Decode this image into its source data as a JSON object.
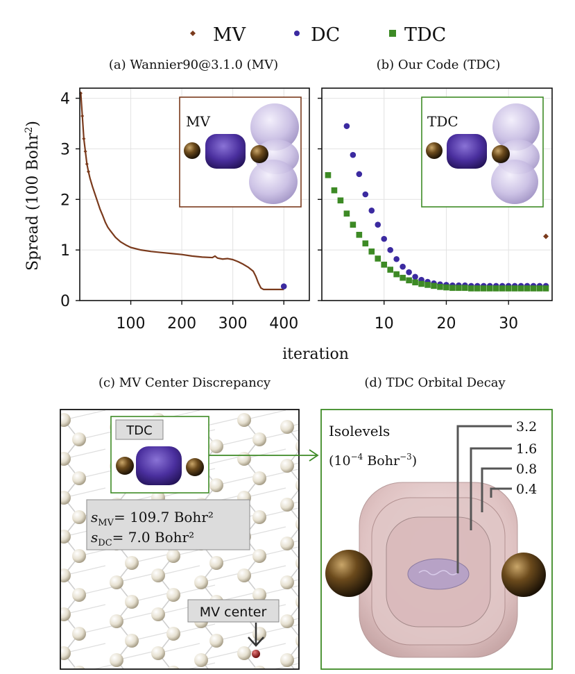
{
  "legend": [
    {
      "label": "MV",
      "color": "#7a3a1c",
      "marker": "diamond"
    },
    {
      "label": "DC",
      "color": "#3b2aa0",
      "marker": "circle"
    },
    {
      "label": "TDC",
      "color": "#3d8a25",
      "marker": "square"
    }
  ],
  "panels": {
    "a": {
      "title": "(a) Wannier90@3.1.0 (MV)",
      "inset_label": "MV"
    },
    "b": {
      "title": "(b) Our Code (TDC)",
      "inset_label": "TDC"
    },
    "c": {
      "title": "(c) MV Center Discrepancy",
      "inset_label": "TDC",
      "s_mv": "= 109.7 Bohr²",
      "s_dc": "= 7.0 Bohr²",
      "center_label": "MV center"
    },
    "d": {
      "title": "(d) TDC Orbital Decay",
      "isolevels_title": "Isolevels",
      "isolevels_unit_a": "(10",
      "isolevels_unit_exp": "−4",
      "isolevels_unit_b": " Bohr",
      "isolevels_unit_exp2": "−3",
      "isolevels_unit_c": ")",
      "isolevels": [
        "3.2",
        "1.6",
        "0.8",
        "0.4"
      ]
    }
  },
  "chart_data": [
    {
      "type": "line",
      "title": "(a) Wannier90@3.1.0 (MV)",
      "xlabel": "iteration",
      "ylabel": "Spread (100 Bohr²)",
      "xlim": [
        0,
        450
      ],
      "ylim": [
        0,
        4.2
      ],
      "xticks": [
        100,
        200,
        300,
        400
      ],
      "yticks": [
        0,
        1,
        2,
        3,
        4
      ],
      "series": [
        {
          "name": "MV",
          "x": [
            2,
            5,
            8,
            11,
            14,
            17,
            20,
            25,
            30,
            35,
            40,
            45,
            50,
            55,
            60,
            70,
            80,
            90,
            100,
            120,
            140,
            160,
            180,
            200,
            220,
            240,
            260,
            265,
            270,
            280,
            290,
            300,
            310,
            320,
            330,
            340,
            345,
            350,
            355,
            360,
            370,
            380,
            390,
            400
          ],
          "values": [
            4.1,
            3.65,
            3.2,
            2.95,
            2.7,
            2.55,
            2.42,
            2.25,
            2.1,
            1.95,
            1.8,
            1.68,
            1.55,
            1.45,
            1.38,
            1.25,
            1.16,
            1.1,
            1.05,
            1.0,
            0.97,
            0.95,
            0.93,
            0.91,
            0.88,
            0.86,
            0.85,
            0.88,
            0.84,
            0.82,
            0.83,
            0.81,
            0.77,
            0.72,
            0.66,
            0.58,
            0.48,
            0.35,
            0.25,
            0.22,
            0.22,
            0.22,
            0.22,
            0.22
          ]
        },
        {
          "name": "DC",
          "x": [
            400
          ],
          "values": [
            0.28
          ]
        }
      ]
    },
    {
      "type": "scatter",
      "title": "(b) Our Code (TDC)",
      "xlabel": "iteration",
      "ylabel": "",
      "xlim": [
        0,
        37
      ],
      "ylim": [
        0,
        4.2
      ],
      "xticks": [
        10,
        20,
        30
      ],
      "yticks": [
        0,
        1,
        2,
        3,
        4
      ],
      "series": [
        {
          "name": "MV",
          "x": [
            36
          ],
          "values": [
            1.27
          ]
        },
        {
          "name": "DC",
          "x": [
            4,
            5,
            6,
            7,
            8,
            9,
            10,
            11,
            12,
            13,
            14,
            15,
            16,
            17,
            18,
            19,
            20,
            21,
            22,
            23,
            24,
            25,
            26,
            27,
            28,
            29,
            30,
            31,
            32,
            33,
            34,
            35,
            36
          ],
          "values": [
            3.45,
            2.88,
            2.5,
            2.1,
            1.78,
            1.5,
            1.22,
            1.0,
            0.82,
            0.67,
            0.56,
            0.47,
            0.41,
            0.37,
            0.34,
            0.32,
            0.31,
            0.3,
            0.3,
            0.3,
            0.29,
            0.29,
            0.29,
            0.29,
            0.29,
            0.29,
            0.29,
            0.29,
            0.29,
            0.29,
            0.29,
            0.29,
            0.29
          ]
        },
        {
          "name": "TDC",
          "x": [
            1,
            2,
            3,
            4,
            5,
            6,
            7,
            8,
            9,
            10,
            11,
            12,
            13,
            14,
            15,
            16,
            17,
            18,
            19,
            20,
            21,
            22,
            23,
            24,
            25,
            26,
            27,
            28,
            29,
            30,
            31,
            32,
            33,
            34,
            35,
            36
          ],
          "values": [
            2.48,
            2.18,
            1.98,
            1.72,
            1.5,
            1.3,
            1.13,
            0.97,
            0.83,
            0.71,
            0.61,
            0.52,
            0.45,
            0.4,
            0.36,
            0.33,
            0.31,
            0.29,
            0.27,
            0.26,
            0.25,
            0.25,
            0.25,
            0.24,
            0.24,
            0.24,
            0.24,
            0.24,
            0.24,
            0.24,
            0.24,
            0.24,
            0.24,
            0.24,
            0.24,
            0.24
          ]
        }
      ]
    }
  ]
}
